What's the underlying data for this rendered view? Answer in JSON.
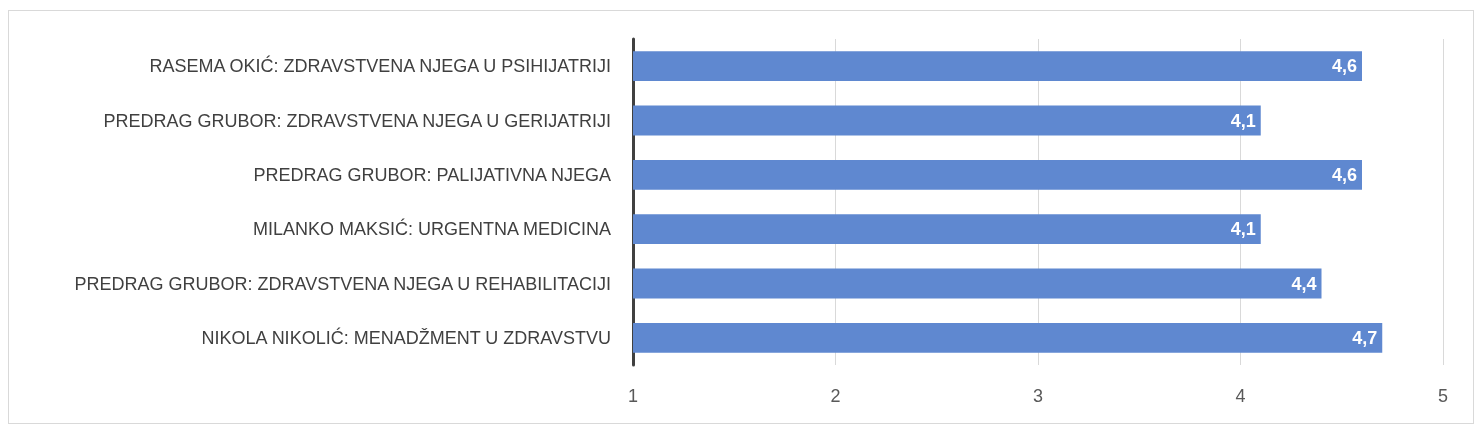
{
  "chart_data": {
    "type": "bar",
    "orientation": "horizontal",
    "categories": [
      "RASEMA OKIĆ: ZDRAVSTVENA NJEGA U PSIHIJATRIJI",
      "PREDRAG GRUBOR: ZDRAVSTVENA NJEGA U GERIJATRIJI",
      "PREDRAG GRUBOR: PALIJATIVNA NJEGA",
      "MILANKO MAKSIĆ: URGENTNA MEDICINA",
      "PREDRAG GRUBOR: ZDRAVSTVENA NJEGA U REHABILITACIJI",
      "NIKOLA NIKOLIĆ: MENADŽMENT U ZDRAVSTVU"
    ],
    "values": [
      4.6,
      4.1,
      4.6,
      4.1,
      4.4,
      4.7
    ],
    "value_labels": [
      "4,6",
      "4,1",
      "4,6",
      "4,1",
      "4,4",
      "4,7"
    ],
    "color": "#5f88d0",
    "xlim": [
      1,
      5
    ],
    "xticks": [
      1,
      2,
      3,
      4,
      5
    ],
    "grid": "x"
  }
}
